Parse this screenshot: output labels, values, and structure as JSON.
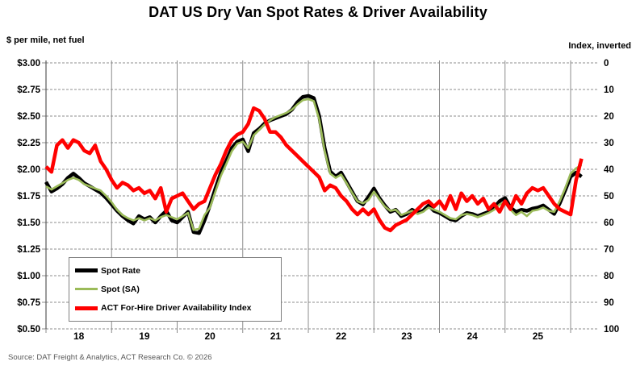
{
  "title": "DAT US Dry Van Spot Rates & Driver Availability",
  "left_axis": {
    "label": "$ per mile, net fuel",
    "ticks": [
      "$3.00",
      "$2.75",
      "$2.50",
      "$2.25",
      "$2.00",
      "$1.75",
      "$1.50",
      "$1.25",
      "$1.00",
      "$0.75",
      "$0.50"
    ],
    "min": 0.5,
    "max": 3.0
  },
  "right_axis": {
    "label": "Index, inverted",
    "ticks": [
      "0",
      "10",
      "20",
      "30",
      "40",
      "50",
      "60",
      "70",
      "80",
      "90",
      "100"
    ],
    "min": 0,
    "max": 100,
    "inverted": true
  },
  "x_axis": {
    "year_labels": [
      "18",
      "19",
      "20",
      "21",
      "22",
      "23",
      "24",
      "25"
    ]
  },
  "legend": {
    "items": [
      {
        "label": "Spot Rate",
        "color": "#000000",
        "thickness": 5
      },
      {
        "label": "Spot (SA)",
        "color": "#9BBB59",
        "thickness": 3
      },
      {
        "label": "ACT For-Hire Driver Availability Index",
        "color": "#FF0000",
        "thickness": 5
      }
    ]
  },
  "source": "Source: DAT Freight & Analytics, ACT Research Co. © 2026",
  "colors": {
    "spot_rate": "#000000",
    "spot_sa": "#9BBB59",
    "driver_availability": "#FF0000",
    "gridline": "#8c8c8c",
    "axis_border": "#595959"
  },
  "chart_data": {
    "type": "line",
    "title": "DAT US Dry Van Spot Rates & Driver Availability",
    "ylabel_left": "$ per mile, net fuel",
    "ylabel_right": "Index, inverted",
    "ylim_left": [
      0.5,
      3.0
    ],
    "ylim_right_inverted": [
      0,
      100
    ],
    "grid": true,
    "legend_position": "lower-left",
    "x_unit": "month",
    "x_start": "2018-01",
    "x_end": "2026-03",
    "x_tick_labels": [
      "18",
      "19",
      "20",
      "21",
      "22",
      "23",
      "24",
      "25"
    ],
    "series": [
      {
        "name": "Spot Rate",
        "id": "spot-rate",
        "axis": "left",
        "color": "#000000",
        "width": 4.5,
        "values": [
          1.88,
          1.79,
          1.82,
          1.86,
          1.92,
          1.96,
          1.92,
          1.87,
          1.84,
          1.81,
          1.78,
          1.73,
          1.67,
          1.61,
          1.56,
          1.52,
          1.49,
          1.56,
          1.53,
          1.55,
          1.5,
          1.56,
          1.61,
          1.52,
          1.5,
          1.55,
          1.6,
          1.41,
          1.4,
          1.52,
          1.66,
          1.82,
          1.97,
          2.08,
          2.2,
          2.26,
          2.28,
          2.17,
          2.34,
          2.38,
          2.43,
          2.46,
          2.48,
          2.5,
          2.52,
          2.56,
          2.63,
          2.68,
          2.69,
          2.67,
          2.5,
          2.2,
          1.98,
          1.93,
          1.97,
          1.88,
          1.79,
          1.7,
          1.67,
          1.74,
          1.82,
          1.73,
          1.66,
          1.6,
          1.62,
          1.56,
          1.58,
          1.62,
          1.59,
          1.61,
          1.66,
          1.61,
          1.59,
          1.56,
          1.53,
          1.52,
          1.56,
          1.59,
          1.58,
          1.56,
          1.58,
          1.6,
          1.64,
          1.7,
          1.73,
          1.64,
          1.6,
          1.62,
          1.61,
          1.63,
          1.64,
          1.66,
          1.62,
          1.58,
          1.68,
          1.8,
          1.93,
          1.97,
          1.93
        ]
      },
      {
        "name": "Spot (SA)",
        "id": "spot-sa",
        "axis": "left",
        "color": "#9BBB59",
        "width": 2.6,
        "values": [
          1.84,
          1.81,
          1.84,
          1.87,
          1.9,
          1.92,
          1.9,
          1.86,
          1.84,
          1.82,
          1.8,
          1.75,
          1.69,
          1.62,
          1.57,
          1.54,
          1.52,
          1.54,
          1.52,
          1.54,
          1.52,
          1.55,
          1.57,
          1.55,
          1.53,
          1.56,
          1.59,
          1.43,
          1.44,
          1.57,
          1.64,
          1.79,
          1.94,
          2.05,
          2.17,
          2.24,
          2.26,
          2.2,
          2.32,
          2.37,
          2.42,
          2.46,
          2.49,
          2.51,
          2.53,
          2.56,
          2.61,
          2.65,
          2.66,
          2.64,
          2.47,
          2.17,
          1.96,
          1.92,
          1.95,
          1.87,
          1.78,
          1.7,
          1.68,
          1.71,
          1.79,
          1.72,
          1.65,
          1.61,
          1.62,
          1.57,
          1.59,
          1.61,
          1.58,
          1.6,
          1.64,
          1.62,
          1.6,
          1.57,
          1.54,
          1.53,
          1.57,
          1.58,
          1.57,
          1.55,
          1.57,
          1.59,
          1.62,
          1.67,
          1.69,
          1.62,
          1.57,
          1.6,
          1.56,
          1.61,
          1.62,
          1.64,
          1.61,
          1.6,
          1.7,
          1.82,
          1.96,
          2.01,
          2.04
        ]
      },
      {
        "name": "ACT For-Hire Driver Availability Index",
        "id": "act-driver-availability",
        "axis": "right",
        "color": "#FF0000",
        "width": 4.5,
        "values": [
          39,
          41,
          31,
          29,
          32,
          29,
          30,
          33,
          34,
          31,
          37,
          40,
          44,
          47,
          45,
          46,
          48,
          47,
          49,
          48,
          51,
          47,
          56,
          51,
          50,
          49,
          52,
          55,
          53,
          52,
          47,
          42,
          38,
          33,
          29,
          27,
          26,
          23,
          17,
          18,
          21,
          26,
          26,
          28,
          31,
          33,
          35,
          37,
          39,
          41,
          43,
          48,
          46,
          47,
          50,
          52,
          55,
          57,
          55,
          57,
          55,
          59,
          62,
          63,
          61,
          60,
          59,
          57,
          55,
          53,
          52,
          54,
          52,
          55,
          50,
          55,
          49,
          52,
          50,
          53,
          51,
          55,
          53,
          56,
          52,
          55,
          50,
          53,
          49,
          47,
          48,
          47,
          50,
          53,
          55,
          56,
          57,
          44,
          36
        ]
      }
    ]
  }
}
